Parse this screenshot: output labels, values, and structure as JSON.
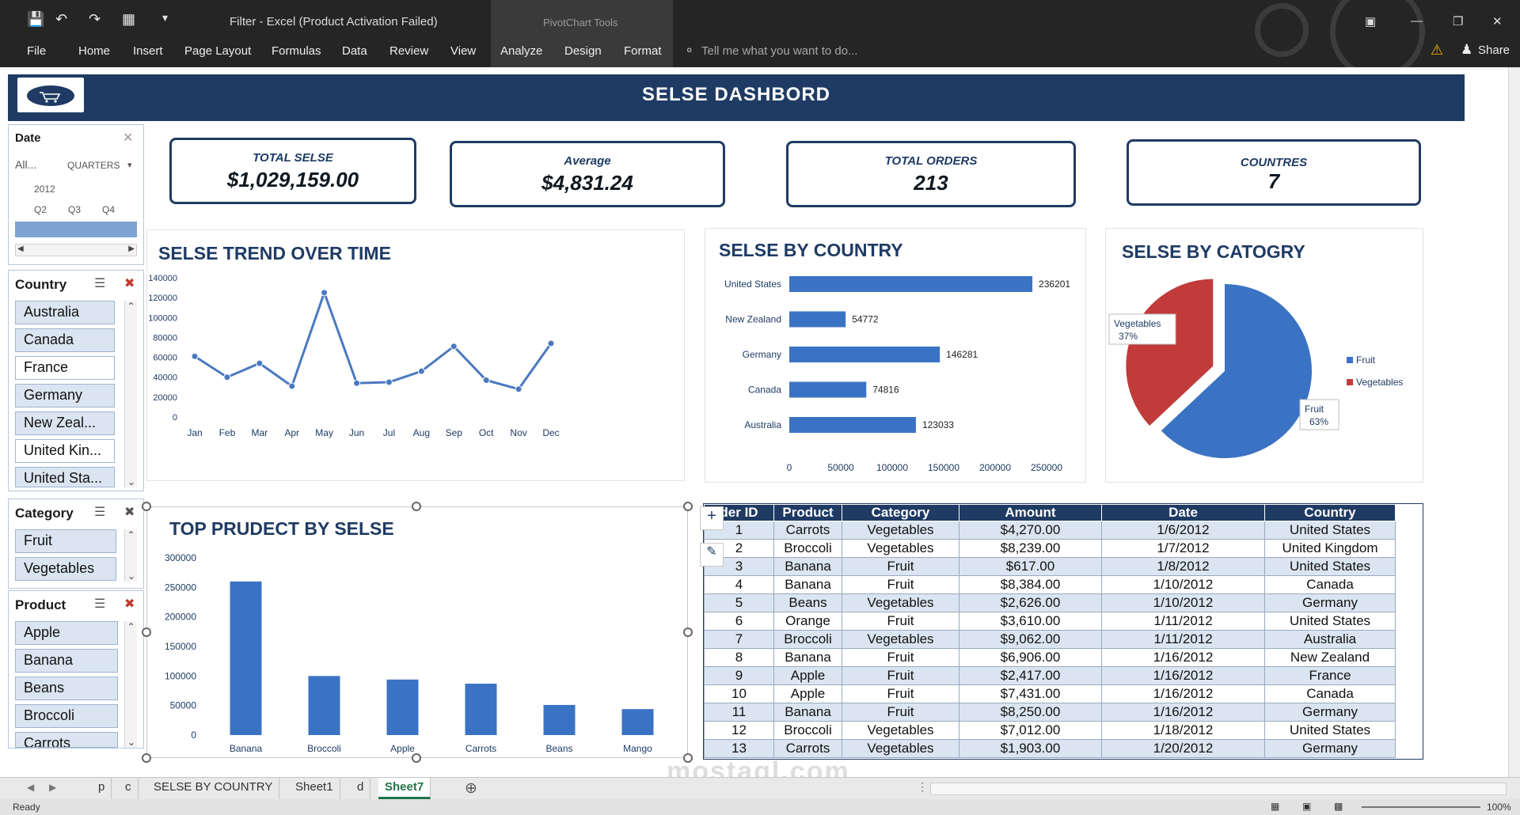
{
  "titlebar": {
    "title": "Filter - Excel (Product Activation Failed)",
    "context_tools": "PivotChart Tools",
    "menu": [
      "File",
      "Home",
      "Insert",
      "Page Layout",
      "Formulas",
      "Data",
      "Review",
      "View",
      "Analyze",
      "Design",
      "Format"
    ],
    "tell_me": "Tell me what you want to do...",
    "share": "Share"
  },
  "dashboard": {
    "title": "SELSE DASHBORD",
    "kpis": [
      {
        "label": "TOTAL SELSE",
        "value": "$1,029,159.00"
      },
      {
        "label": "Average",
        "value": "$4,831.24"
      },
      {
        "label": "TOTAL ORDERS",
        "value": "213"
      },
      {
        "label": "COUNTRES",
        "value": "7"
      }
    ]
  },
  "slicers": {
    "date": {
      "title": "Date",
      "all": "All...",
      "level": "QUARTERS",
      "year": "2012",
      "quarters": [
        "Q2",
        "Q3",
        "Q4"
      ]
    },
    "country": {
      "title": "Country",
      "items": [
        "Australia",
        "Canada",
        "France",
        "Germany",
        "New Zeal...",
        "United Kin...",
        "United Sta..."
      ],
      "selected": [
        true,
        true,
        false,
        true,
        true,
        false,
        true
      ]
    },
    "category": {
      "title": "Category",
      "items": [
        "Fruit",
        "Vegetables"
      ],
      "selected": [
        true,
        true
      ]
    },
    "product": {
      "title": "Product",
      "items": [
        "Apple",
        "Banana",
        "Beans",
        "Broccoli",
        "Carrots"
      ],
      "selected": [
        true,
        true,
        true,
        true,
        true
      ]
    }
  },
  "charts": {
    "trend_title": "SELSE TREND OVER TIME",
    "country_title": "SELSE BY COUNTRY",
    "category_title": "SELSE BY CATOGRY",
    "product_title": "TOP PRUDECT BY SELSE"
  },
  "chart_data": [
    {
      "type": "line",
      "title": "SELSE TREND OVER TIME",
      "categories": [
        "Jan",
        "Feb",
        "Mar",
        "Apr",
        "May",
        "Jun",
        "Jul",
        "Aug",
        "Sep",
        "Oct",
        "Nov",
        "Dec"
      ],
      "values": [
        61000,
        40000,
        54000,
        31000,
        125000,
        34000,
        35000,
        46000,
        71000,
        37000,
        28000,
        74000
      ],
      "yticks": [
        "0",
        "20000",
        "40000",
        "60000",
        "80000",
        "100000",
        "120000",
        "140000"
      ],
      "ylim": [
        0,
        140000
      ],
      "grid": false
    },
    {
      "type": "bar",
      "orientation": "horizontal",
      "title": "SELSE BY COUNTRY",
      "categories": [
        "United States",
        "New Zealand",
        "Germany",
        "Canada",
        "Australia"
      ],
      "values": [
        236201,
        54772,
        146281,
        74816,
        123033
      ],
      "value_labels": [
        "236201",
        "54772",
        "146281",
        "74816",
        "123033"
      ],
      "xticks": [
        "0",
        "50000",
        "100000",
        "150000",
        "200000",
        "250000"
      ],
      "xlim": [
        0,
        250000
      ]
    },
    {
      "type": "pie",
      "title": "SELSE BY CATOGRY",
      "categories": [
        "Fruit",
        "Vegetables"
      ],
      "values": [
        63,
        37
      ],
      "labels": [
        {
          "name": "Fruit",
          "pct": "63%"
        },
        {
          "name": "Vegetables",
          "pct": "37%"
        }
      ],
      "colors": [
        "#3b73c4",
        "#c23b3b"
      ],
      "legend": "right"
    },
    {
      "type": "bar",
      "title": "TOP PRUDECT BY SELSE",
      "categories": [
        "Banana",
        "Broccoli",
        "Apple",
        "Carrots",
        "Beans",
        "Mango"
      ],
      "values": [
        260000,
        100000,
        94000,
        87000,
        51000,
        44000
      ],
      "yticks": [
        "0",
        "50000",
        "100000",
        "150000",
        "200000",
        "250000",
        "300000"
      ],
      "ylim": [
        0,
        300000
      ]
    }
  ],
  "table": {
    "headers": [
      "der ID",
      "Product",
      "Category",
      "Amount",
      "Date",
      "Country"
    ],
    "rows": [
      [
        "1",
        "Carrots",
        "Vegetables",
        "$4,270.00",
        "1/6/2012",
        "United States"
      ],
      [
        "2",
        "Broccoli",
        "Vegetables",
        "$8,239.00",
        "1/7/2012",
        "United Kingdom"
      ],
      [
        "3",
        "Banana",
        "Fruit",
        "$617.00",
        "1/8/2012",
        "United States"
      ],
      [
        "4",
        "Banana",
        "Fruit",
        "$8,384.00",
        "1/10/2012",
        "Canada"
      ],
      [
        "5",
        "Beans",
        "Vegetables",
        "$2,626.00",
        "1/10/2012",
        "Germany"
      ],
      [
        "6",
        "Orange",
        "Fruit",
        "$3,610.00",
        "1/11/2012",
        "United States"
      ],
      [
        "7",
        "Broccoli",
        "Vegetables",
        "$9,062.00",
        "1/11/2012",
        "Australia"
      ],
      [
        "8",
        "Banana",
        "Fruit",
        "$6,906.00",
        "1/16/2012",
        "New Zealand"
      ],
      [
        "9",
        "Apple",
        "Fruit",
        "$2,417.00",
        "1/16/2012",
        "France"
      ],
      [
        "10",
        "Apple",
        "Fruit",
        "$7,431.00",
        "1/16/2012",
        "Canada"
      ],
      [
        "11",
        "Banana",
        "Fruit",
        "$8,250.00",
        "1/16/2012",
        "Germany"
      ],
      [
        "12",
        "Broccoli",
        "Vegetables",
        "$7,012.00",
        "1/18/2012",
        "United States"
      ],
      [
        "13",
        "Carrots",
        "Vegetables",
        "$1,903.00",
        "1/20/2012",
        "Germany"
      ]
    ]
  },
  "sheet_tabs": [
    "p",
    "c",
    "SELSE BY COUNTRY",
    "Sheet1",
    "d",
    "Sheet7"
  ],
  "active_sheet": "Sheet7",
  "status": {
    "ready": "Ready",
    "zoom": "100%"
  },
  "watermark": "mostaql.com",
  "colors": {
    "navy": "#1f3b64",
    "bar_blue": "#3b73c4",
    "pie_red": "#c23b3b",
    "band": "#dbe5f1"
  }
}
